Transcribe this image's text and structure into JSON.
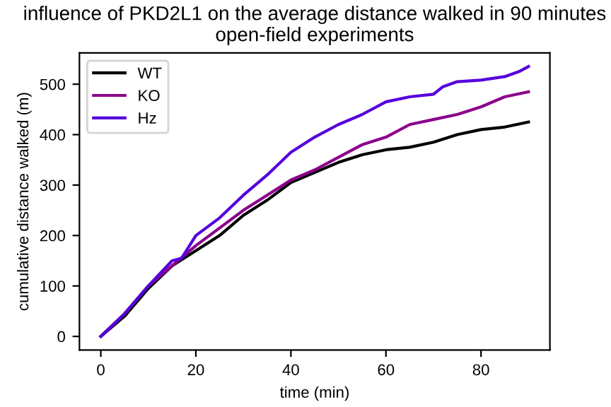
{
  "chart_data": {
    "type": "line",
    "title": "influence of PKD2L1 on the average distance walked in 90 minutes\nopen-field experiments",
    "xlabel": "time (min)",
    "ylabel": "cumulative distance walked (m)",
    "xlim": [
      -4.5,
      94.5
    ],
    "ylim": [
      -27,
      562
    ],
    "xticks": [
      0,
      20,
      40,
      60,
      80
    ],
    "yticks": [
      0,
      100,
      200,
      300,
      400,
      500
    ],
    "grid": false,
    "legend": "top left",
    "series": [
      {
        "name": "WT",
        "color": "#000000",
        "x": [
          0,
          5,
          10,
          15,
          20,
          25,
          30,
          35,
          40,
          45,
          50,
          55,
          60,
          65,
          70,
          75,
          80,
          85,
          90
        ],
        "values": [
          0,
          40,
          95,
          140,
          170,
          200,
          240,
          270,
          305,
          325,
          345,
          360,
          370,
          375,
          385,
          400,
          410,
          415,
          425
        ]
      },
      {
        "name": "KO",
        "color": "#8b008b",
        "x": [
          0,
          5,
          10,
          15,
          20,
          25,
          30,
          35,
          40,
          45,
          50,
          55,
          60,
          65,
          70,
          75,
          80,
          85,
          90
        ],
        "values": [
          0,
          45,
          100,
          140,
          180,
          215,
          250,
          280,
          310,
          330,
          355,
          380,
          395,
          420,
          430,
          440,
          455,
          475,
          485
        ]
      },
      {
        "name": "Hz",
        "color": "#5500dd",
        "x": [
          0,
          5,
          10,
          13,
          15,
          17,
          20,
          25,
          30,
          35,
          40,
          45,
          50,
          55,
          60,
          65,
          70,
          72,
          75,
          80,
          85,
          88,
          90
        ],
        "values": [
          0,
          45,
          100,
          130,
          150,
          155,
          200,
          235,
          280,
          320,
          365,
          395,
          420,
          440,
          465,
          475,
          480,
          495,
          505,
          508,
          515,
          525,
          535
        ]
      }
    ]
  }
}
